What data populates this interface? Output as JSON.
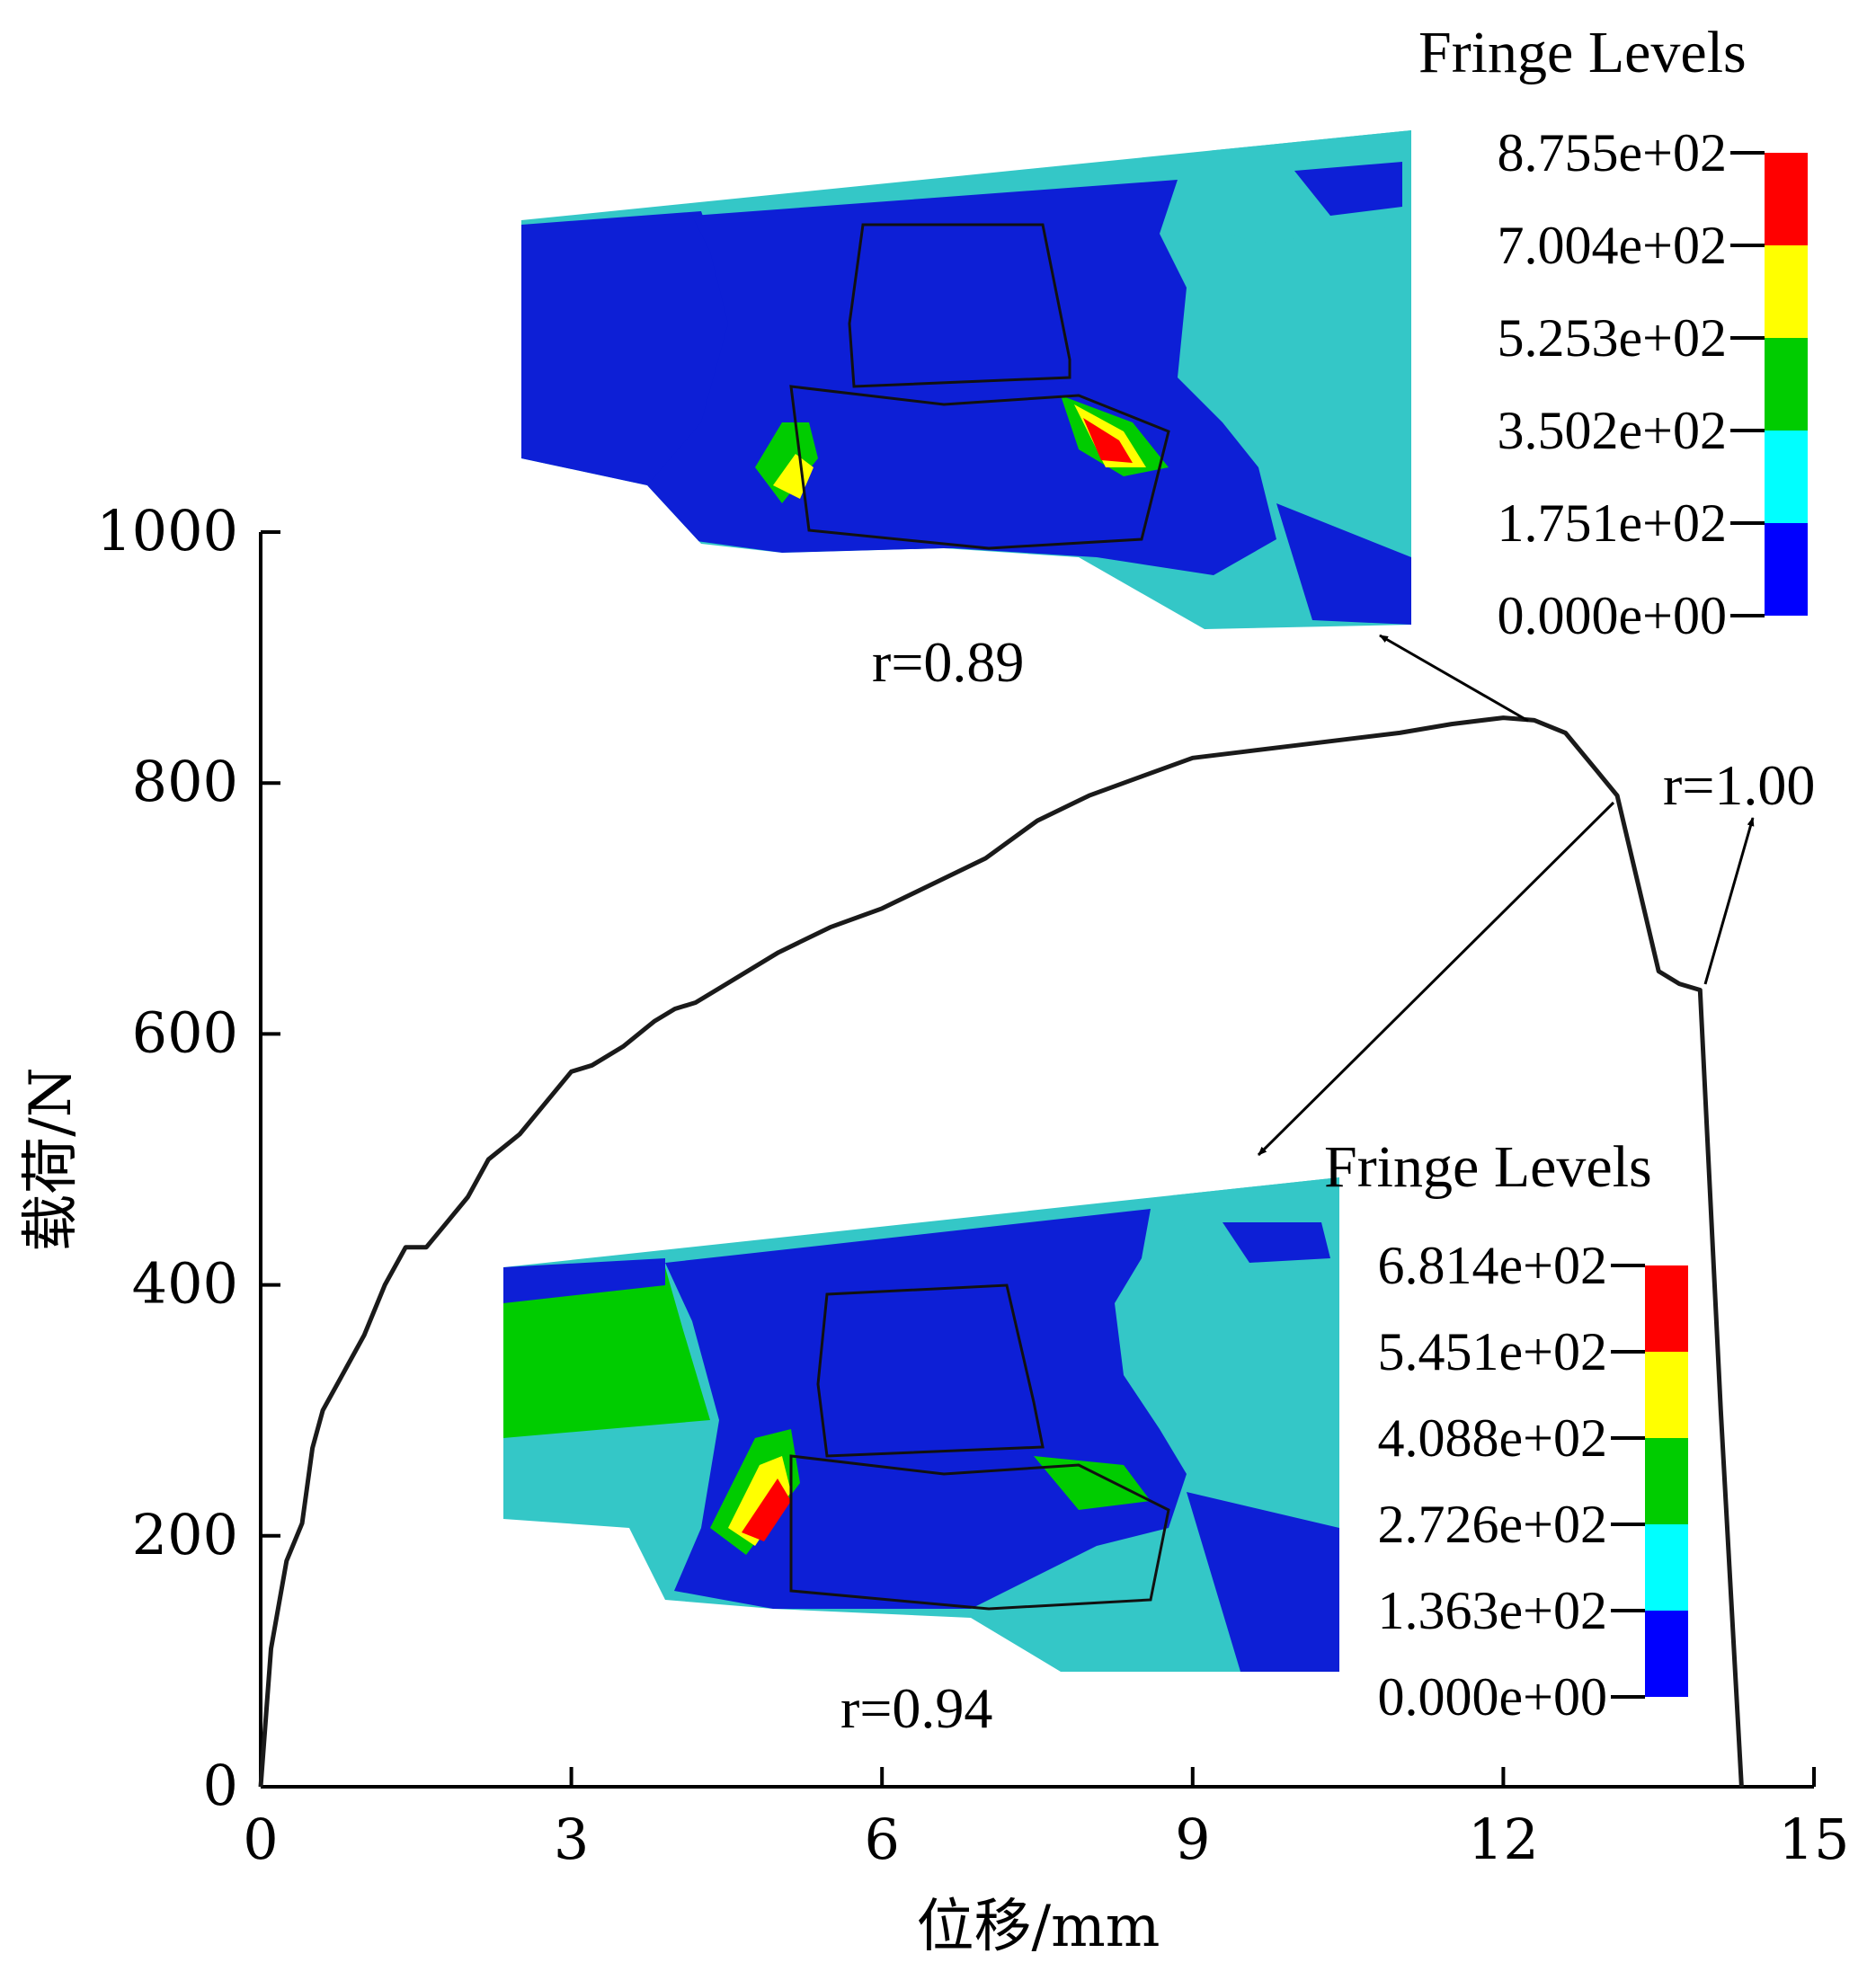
{
  "chart_data": {
    "type": "line",
    "xlabel": "位移/mm",
    "ylabel": "载荷/N",
    "xlim": [
      0,
      15
    ],
    "ylim": [
      0,
      1000
    ],
    "x_ticks": [
      "0",
      "3",
      "6",
      "9",
      "12",
      "15"
    ],
    "y_ticks": [
      "0",
      "200",
      "400",
      "600",
      "800",
      "1000"
    ],
    "grid": false,
    "series": [
      {
        "x": [
          0,
          0.1,
          0.25,
          0.4,
          0.5,
          0.6,
          0.8,
          1.0,
          1.2,
          1.4,
          1.6,
          1.8,
          2.0,
          2.2,
          2.5,
          2.8,
          3.0,
          3.2,
          3.5,
          3.8,
          4.0,
          4.2,
          4.5,
          5.0,
          5.5,
          6.0,
          6.5,
          7.0,
          7.5,
          8.0,
          8.5,
          9.0,
          9.5,
          10.0,
          10.5,
          11.0,
          11.5,
          12.0,
          12.3,
          12.6,
          12.9,
          13.1,
          13.3,
          13.5,
          13.7,
          13.9,
          14.1,
          14.3
        ],
        "y": [
          0,
          110,
          180,
          210,
          270,
          300,
          330,
          360,
          400,
          430,
          430,
          450,
          470,
          500,
          520,
          550,
          570,
          575,
          590,
          610,
          620,
          625,
          640,
          665,
          685,
          700,
          720,
          740,
          770,
          790,
          805,
          820,
          825,
          830,
          835,
          840,
          847,
          852,
          850,
          840,
          810,
          790,
          720,
          650,
          640,
          635,
          300,
          0
        ]
      }
    ],
    "annotations": [
      "r=0.89",
      "r=1.00",
      "r=0.94"
    ],
    "insets": [
      {
        "title": "Fringe Levels",
        "levels": [
          "8.755e+02",
          "7.004e+02",
          "5.253e+02",
          "3.502e+02",
          "1.751e+02",
          "0.000e+00"
        ]
      },
      {
        "title": "Fringe Levels",
        "levels": [
          "6.814e+02",
          "5.451e+02",
          "4.088e+02",
          "2.726e+02",
          "1.363e+02",
          "0.000e+00"
        ]
      }
    ],
    "colors": {
      "curve": "#1a1a1a",
      "contour_bands": [
        "#ff0000",
        "#ffff00",
        "#00cc00",
        "#00ffff",
        "#0000ff"
      ],
      "model_dark": "#0d1fd6",
      "model_light": "#34c7c7"
    }
  }
}
